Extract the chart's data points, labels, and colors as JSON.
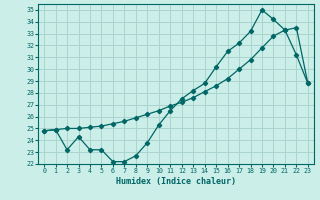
{
  "xlabel": "Humidex (Indice chaleur)",
  "bg_color": "#cceee8",
  "grid_color": "#aad4ce",
  "line_color": "#006666",
  "xlim": [
    -0.5,
    23.5
  ],
  "ylim": [
    22,
    35.5
  ],
  "yticks": [
    22,
    23,
    24,
    25,
    26,
    27,
    28,
    29,
    30,
    31,
    32,
    33,
    34,
    35
  ],
  "xticks": [
    0,
    1,
    2,
    3,
    4,
    5,
    6,
    7,
    8,
    9,
    10,
    11,
    12,
    13,
    14,
    15,
    16,
    17,
    18,
    19,
    20,
    21,
    22,
    23
  ],
  "line1_x": [
    0,
    1,
    2,
    3,
    4,
    5,
    6,
    7,
    8,
    9,
    10,
    11,
    12,
    13,
    14,
    15,
    16,
    17,
    18,
    19,
    20,
    21,
    22,
    23
  ],
  "line1_y": [
    24.8,
    24.9,
    25.0,
    25.0,
    25.1,
    25.2,
    25.4,
    25.6,
    25.9,
    26.2,
    26.5,
    26.9,
    27.2,
    27.6,
    28.1,
    28.6,
    29.2,
    30.0,
    30.8,
    31.8,
    32.8,
    33.3,
    33.5,
    28.8
  ],
  "line2_x": [
    0,
    1,
    2,
    3,
    4,
    5,
    6,
    7,
    8,
    9,
    10,
    11,
    12,
    13,
    14,
    15,
    16,
    17,
    18,
    19,
    20,
    21,
    22,
    23
  ],
  "line2_y": [
    24.8,
    24.9,
    23.2,
    24.3,
    23.2,
    23.2,
    22.2,
    22.2,
    22.7,
    23.8,
    25.3,
    26.5,
    27.5,
    28.2,
    28.8,
    30.2,
    31.5,
    32.2,
    33.2,
    35.0,
    34.2,
    33.3,
    31.2,
    28.8
  ]
}
